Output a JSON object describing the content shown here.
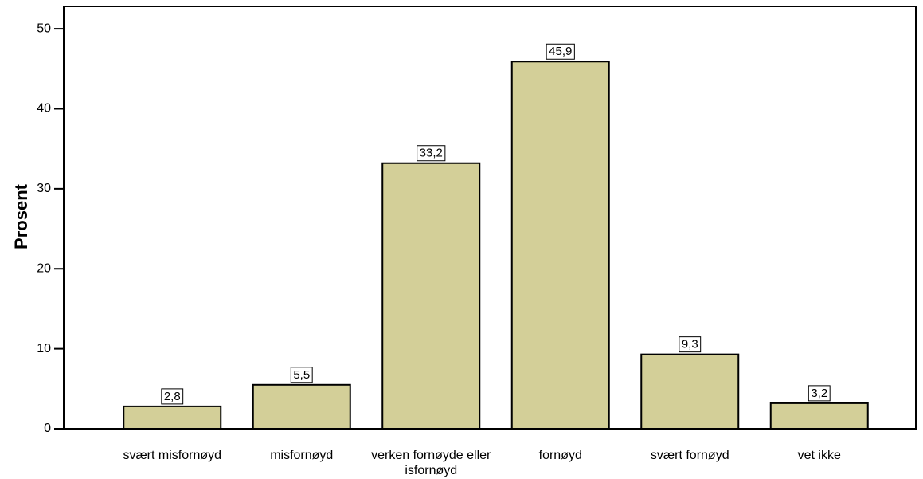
{
  "chart_data": {
    "type": "bar",
    "y_label": "Prosent",
    "categories": [
      "svært misfornøyd",
      "misfornøyd",
      "verken fornøyde eller isfornøyd",
      "fornøyd",
      "svært fornøyd",
      "vet ikke"
    ],
    "values": [
      2.8,
      5.5,
      33.2,
      45.9,
      9.3,
      3.2
    ],
    "value_labels": [
      "2,8",
      "5,5",
      "33,2",
      "45,9",
      "9,3",
      "3,2"
    ],
    "color": "#d3cf98",
    "ylim": [
      0,
      52.8
    ],
    "yticks": [
      0,
      10,
      20,
      30,
      40,
      50
    ]
  }
}
